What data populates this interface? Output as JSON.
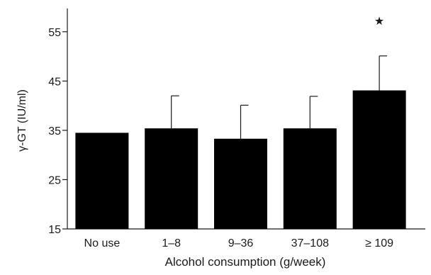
{
  "chart_data": {
    "type": "bar",
    "title": "",
    "xlabel": "Alcohol consumption (g/week)",
    "ylabel": "γ-GT (IU/ml)",
    "ylim": [
      15,
      60
    ],
    "yticks": [
      15,
      25,
      35,
      45,
      55
    ],
    "categories": [
      "No use",
      "1–8",
      "9–36",
      "37–108",
      "≥ 109"
    ],
    "values": [
      34.5,
      35.4,
      33.3,
      35.4,
      43.1
    ],
    "error_upper": [
      null,
      42.0,
      40.1,
      41.9,
      50.1
    ],
    "annotations": [
      {
        "category_index": 4,
        "text": "★",
        "value": 57.3
      }
    ],
    "grid": false,
    "legend": "none",
    "colors": {
      "bar": "#000000",
      "axis": "#1a1a1a",
      "text": "#1a1a1a"
    }
  }
}
